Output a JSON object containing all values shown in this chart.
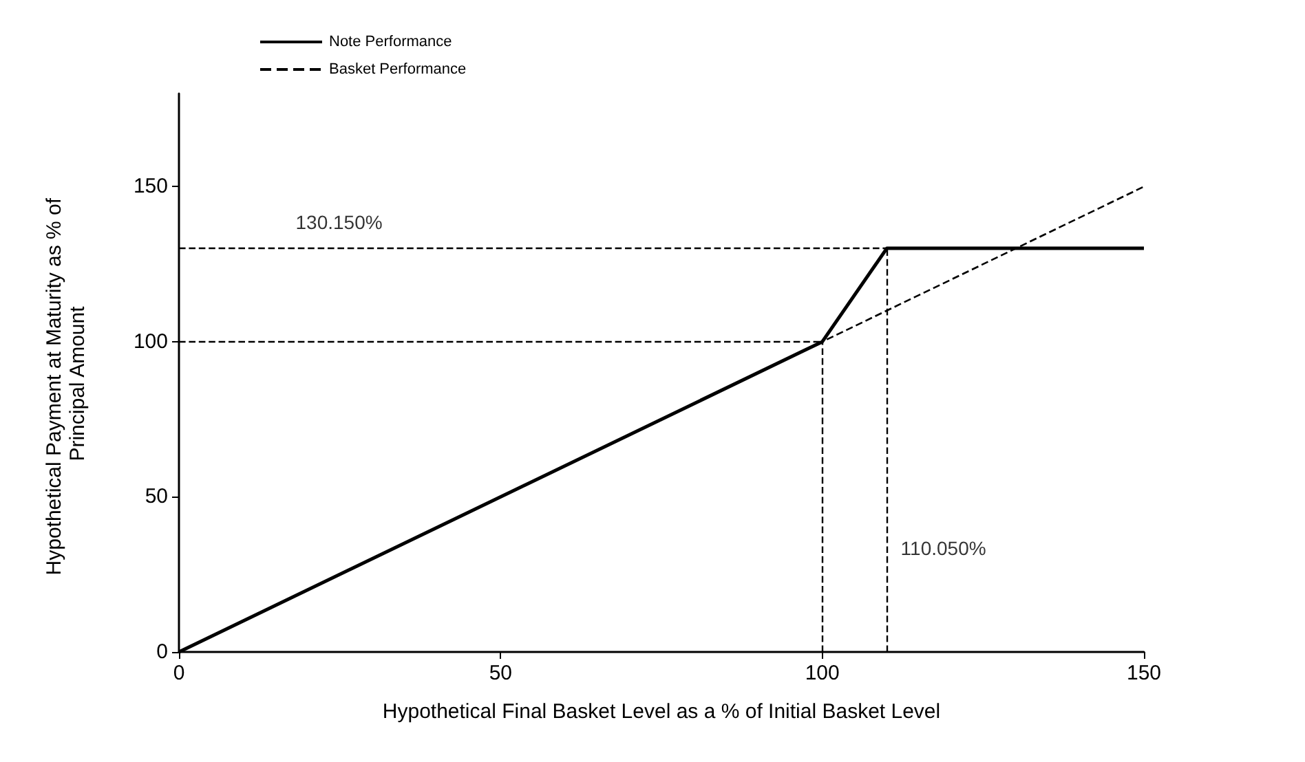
{
  "chart_data": {
    "type": "line",
    "xlabel": "Hypothetical Final Basket Level as a % of Initial Basket Level",
    "ylabel": "Hypothetical Payment at Maturity as % of Principal Amount",
    "series": [
      {
        "name": "Note Performance",
        "color": "#000000",
        "x": [
          0,
          100,
          110.05,
          150
        ],
        "values": [
          0,
          100,
          130.15,
          130.15
        ],
        "line_style": "solid"
      },
      {
        "name": "Basket Performance",
        "color": "#000000",
        "x": [
          0,
          150
        ],
        "values": [
          0,
          150
        ],
        "line_style": "dashed"
      }
    ],
    "xlim": [
      0,
      150
    ],
    "xticks": [
      0,
      50,
      100,
      150
    ],
    "ylim": [
      0,
      180
    ],
    "yticks": [
      0,
      50,
      100,
      150
    ],
    "ref_lines": [
      {
        "axis": "y",
        "value": 100,
        "line_style": "dashed",
        "color": "#000000"
      },
      {
        "axis": "y",
        "value": 130.15,
        "line_style": "dashed",
        "color": "#000000"
      },
      {
        "axis": "x",
        "value": 100,
        "line_style": "dashed",
        "color": "#000000"
      },
      {
        "axis": "x",
        "value": 110.05,
        "line_style": "dashed",
        "color": "#000000"
      }
    ],
    "annotations": [
      {
        "text": "130.150%",
        "x": 16,
        "y": 130.15
      },
      {
        "text": "110.050%",
        "x": 110.05,
        "y": 25
      }
    ],
    "grid": false,
    "legend": "top left",
    "marker": "none"
  }
}
